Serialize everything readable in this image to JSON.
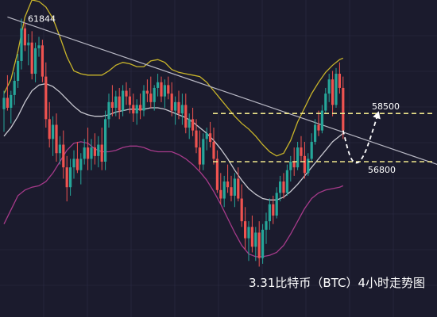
{
  "chart_data": {
    "type": "candlestick",
    "title": "3.31比特币（BTC）4小时走势图",
    "y_range": [
      53000,
      62500
    ],
    "colors": {
      "background": "#1b1b2d",
      "grid": "#2d2d45",
      "up": "#26a69a",
      "down": "#ef5350",
      "bb_upper": "#c9b52a",
      "bb_middle": "#c8c8d0",
      "bb_lower": "#a63a8a",
      "trendline": "#b8b8c4",
      "level": "#f0e68c",
      "projection": "#ffffff"
    },
    "annotations": {
      "peak_label": "61844",
      "resistance_label": "58500",
      "support_label": "56800"
    },
    "levels": [
      {
        "name": "resistance",
        "value": 58500
      },
      {
        "name": "support",
        "value": 56800
      }
    ],
    "trendline": [
      [
        2,
        61900
      ],
      [
        125,
        56700
      ]
    ],
    "candles": [
      [
        1,
        58650,
        59300,
        57850,
        59050
      ],
      [
        2,
        59050,
        59850,
        58600,
        58700
      ],
      [
        3,
        58700,
        59300,
        58150,
        59150
      ],
      [
        4,
        59150,
        59950,
        58800,
        59650
      ],
      [
        5,
        59650,
        60600,
        59400,
        60350
      ],
      [
        6,
        60350,
        61844,
        60050,
        61500
      ],
      [
        7,
        61500,
        61700,
        60700,
        60900
      ],
      [
        8,
        60900,
        61300,
        60200,
        61000
      ],
      [
        9,
        61000,
        61400,
        59700,
        59900
      ],
      [
        10,
        59900,
        61000,
        59600,
        60800
      ],
      [
        11,
        60800,
        61200,
        60500,
        60900
      ],
      [
        12,
        60900,
        61100,
        59600,
        59800
      ],
      [
        13,
        59800,
        60300,
        58000,
        58300
      ],
      [
        14,
        58300,
        58900,
        57300,
        57600
      ],
      [
        15,
        57600,
        58400,
        57000,
        58100
      ],
      [
        16,
        58100,
        58500,
        56800,
        57100
      ],
      [
        17,
        57100,
        57700,
        56700,
        57400
      ],
      [
        18,
        57400,
        57900,
        56200,
        56600
      ],
      [
        19,
        56600,
        57000,
        55400,
        55900
      ],
      [
        20,
        55900,
        56900,
        55600,
        56600
      ],
      [
        21,
        56600,
        57200,
        56200,
        56900
      ],
      [
        22,
        56900,
        57500,
        56400,
        56500
      ],
      [
        23,
        56500,
        57100,
        56000,
        56900
      ],
      [
        24,
        56900,
        57600,
        56700,
        57300
      ],
      [
        25,
        57300,
        58000,
        56500,
        56900
      ],
      [
        26,
        56900,
        57600,
        56500,
        57300
      ],
      [
        27,
        57300,
        57800,
        56700,
        57000
      ],
      [
        28,
        57000,
        57700,
        56600,
        57400
      ],
      [
        29,
        57400,
        58000,
        56500,
        56800
      ],
      [
        30,
        56800,
        58600,
        56500,
        58300
      ],
      [
        31,
        58300,
        59200,
        58000,
        58900
      ],
      [
        32,
        58900,
        59500,
        58400,
        58700
      ],
      [
        33,
        58700,
        59300,
        58400,
        59100
      ],
      [
        34,
        59100,
        59400,
        58300,
        58600
      ],
      [
        35,
        58600,
        59500,
        58400,
        59300
      ],
      [
        36,
        59300,
        59600,
        58800,
        59100
      ],
      [
        37,
        59100,
        59400,
        58500,
        58800
      ],
      [
        38,
        58800,
        59200,
        58200,
        58500
      ],
      [
        39,
        58500,
        59000,
        58100,
        58800
      ],
      [
        40,
        58800,
        59200,
        58300,
        58600
      ],
      [
        41,
        58600,
        59500,
        58400,
        59300
      ],
      [
        42,
        59300,
        59700,
        58900,
        59200
      ],
      [
        43,
        59200,
        59800,
        58700,
        58900
      ],
      [
        44,
        58900,
        59500,
        58600,
        59400
      ],
      [
        45,
        59400,
        59900,
        59100,
        59600
      ],
      [
        46,
        59600,
        59800,
        58900,
        59100
      ],
      [
        47,
        59100,
        59700,
        58700,
        59500
      ],
      [
        48,
        59500,
        59800,
        59000,
        59200
      ],
      [
        49,
        59200,
        59600,
        58400,
        58600
      ],
      [
        50,
        58600,
        59100,
        58100,
        58900
      ],
      [
        51,
        58900,
        59300,
        58300,
        58500
      ],
      [
        52,
        58500,
        59200,
        58100,
        58800
      ],
      [
        53,
        58800,
        59200,
        57800,
        58000
      ],
      [
        54,
        58000,
        58500,
        57600,
        58300
      ],
      [
        55,
        58300,
        58700,
        57700,
        57900
      ],
      [
        56,
        57900,
        58300,
        57100,
        57300
      ],
      [
        57,
        57300,
        57900,
        56500,
        56700
      ],
      [
        58,
        56700,
        57800,
        56500,
        57600
      ],
      [
        59,
        57600,
        58000,
        57200,
        57800
      ],
      [
        60,
        57800,
        58200,
        57300,
        57500
      ],
      [
        61,
        57500,
        58000,
        56700,
        56900
      ],
      [
        62,
        56900,
        57200,
        55700,
        55800
      ],
      [
        63,
        55800,
        56400,
        55300,
        55500
      ],
      [
        64,
        55500,
        56300,
        55200,
        56100
      ],
      [
        65,
        56100,
        56700,
        55700,
        55900
      ],
      [
        66,
        55900,
        56300,
        55400,
        55600
      ],
      [
        67,
        55600,
        56400,
        55200,
        56200
      ],
      [
        68,
        56200,
        56600,
        55400,
        55500
      ],
      [
        69,
        55500,
        56000,
        54500,
        54700
      ],
      [
        70,
        54700,
        55200,
        53700,
        54100
      ],
      [
        71,
        54100,
        54700,
        53300,
        54500
      ],
      [
        72,
        54500,
        54900,
        53600,
        53800
      ],
      [
        73,
        53800,
        54500,
        53300,
        54300
      ],
      [
        74,
        54300,
        54700,
        53100,
        53400
      ],
      [
        75,
        53400,
        54600,
        53200,
        54400
      ],
      [
        76,
        54400,
        55000,
        53900,
        54700
      ],
      [
        77,
        54700,
        55500,
        54400,
        55300
      ],
      [
        78,
        55300,
        55600,
        54600,
        54900
      ],
      [
        79,
        54900,
        55900,
        54800,
        55700
      ],
      [
        80,
        55700,
        56300,
        55400,
        56100
      ],
      [
        81,
        56100,
        56400,
        55500,
        55700
      ],
      [
        82,
        55700,
        56700,
        55600,
        56500
      ],
      [
        83,
        56500,
        57000,
        56100,
        56800
      ],
      [
        84,
        56800,
        57300,
        56300,
        56600
      ],
      [
        85,
        56600,
        57500,
        56500,
        57300
      ],
      [
        86,
        57300,
        57700,
        56800,
        57000
      ],
      [
        87,
        57000,
        57500,
        56200,
        56400
      ],
      [
        88,
        56400,
        57100,
        56300,
        56900
      ],
      [
        89,
        56900,
        57800,
        56800,
        57500
      ],
      [
        90,
        57500,
        58300,
        57400,
        58100
      ],
      [
        91,
        58100,
        58600,
        57700,
        57900
      ],
      [
        92,
        57900,
        58800,
        57800,
        58600
      ],
      [
        93,
        58600,
        59400,
        58500,
        59200
      ],
      [
        94,
        59200,
        59900,
        58900,
        59700
      ],
      [
        95,
        59700,
        60000,
        58400,
        58800
      ],
      [
        96,
        58800,
        60100,
        58700,
        59900
      ],
      [
        97,
        59900,
        60300,
        59200,
        59400
      ],
      [
        98,
        59400,
        59800,
        57600,
        57900
      ]
    ],
    "bb_upper": [
      [
        1,
        59200
      ],
      [
        3,
        59700
      ],
      [
        5,
        60700
      ],
      [
        7,
        61900
      ],
      [
        9,
        62500
      ],
      [
        11,
        62450
      ],
      [
        13,
        62250
      ],
      [
        15,
        61850
      ],
      [
        17,
        61200
      ],
      [
        19,
        60500
      ],
      [
        21,
        60000
      ],
      [
        23,
        59900
      ],
      [
        25,
        59850
      ],
      [
        27,
        59850
      ],
      [
        29,
        59850
      ],
      [
        31,
        60000
      ],
      [
        33,
        60200
      ],
      [
        35,
        60300
      ],
      [
        37,
        60250
      ],
      [
        39,
        60150
      ],
      [
        41,
        60150
      ],
      [
        43,
        60350
      ],
      [
        45,
        60400
      ],
      [
        47,
        60300
      ],
      [
        49,
        60050
      ],
      [
        51,
        59950
      ],
      [
        53,
        59900
      ],
      [
        55,
        59850
      ],
      [
        57,
        59800
      ],
      [
        59,
        59600
      ],
      [
        61,
        59300
      ],
      [
        63,
        59000
      ],
      [
        65,
        58700
      ],
      [
        67,
        58400
      ],
      [
        69,
        58150
      ],
      [
        71,
        57950
      ],
      [
        73,
        57700
      ],
      [
        75,
        57400
      ],
      [
        77,
        57150
      ],
      [
        79,
        57000
      ],
      [
        81,
        57100
      ],
      [
        83,
        57550
      ],
      [
        85,
        58200
      ],
      [
        87,
        58700
      ],
      [
        89,
        59200
      ],
      [
        91,
        59600
      ],
      [
        93,
        59950
      ],
      [
        95,
        60200
      ],
      [
        97,
        60400
      ],
      [
        98,
        60450
      ]
    ],
    "bb_middle": [
      [
        1,
        57700
      ],
      [
        3,
        58000
      ],
      [
        5,
        58400
      ],
      [
        7,
        58900
      ],
      [
        9,
        59300
      ],
      [
        11,
        59500
      ],
      [
        13,
        59550
      ],
      [
        15,
        59450
      ],
      [
        17,
        59250
      ],
      [
        19,
        59000
      ],
      [
        21,
        58750
      ],
      [
        23,
        58550
      ],
      [
        25,
        58450
      ],
      [
        27,
        58400
      ],
      [
        29,
        58400
      ],
      [
        31,
        58450
      ],
      [
        33,
        58550
      ],
      [
        35,
        58600
      ],
      [
        37,
        58650
      ],
      [
        39,
        58650
      ],
      [
        41,
        58650
      ],
      [
        43,
        58700
      ],
      [
        45,
        58700
      ],
      [
        47,
        58650
      ],
      [
        49,
        58550
      ],
      [
        51,
        58450
      ],
      [
        53,
        58350
      ],
      [
        55,
        58200
      ],
      [
        57,
        58000
      ],
      [
        59,
        57800
      ],
      [
        61,
        57550
      ],
      [
        63,
        57250
      ],
      [
        65,
        56900
      ],
      [
        67,
        56500
      ],
      [
        69,
        56150
      ],
      [
        71,
        55850
      ],
      [
        73,
        55650
      ],
      [
        75,
        55500
      ],
      [
        77,
        55450
      ],
      [
        79,
        55450
      ],
      [
        81,
        55550
      ],
      [
        83,
        55750
      ],
      [
        85,
        56000
      ],
      [
        87,
        56300
      ],
      [
        89,
        56600
      ],
      [
        91,
        56900
      ],
      [
        93,
        57200
      ],
      [
        95,
        57500
      ],
      [
        97,
        57700
      ],
      [
        98,
        57800
      ]
    ],
    "bb_lower": [
      [
        1,
        54600
      ],
      [
        3,
        55100
      ],
      [
        5,
        55600
      ],
      [
        7,
        55800
      ],
      [
        9,
        55900
      ],
      [
        11,
        55950
      ],
      [
        13,
        56100
      ],
      [
        15,
        56400
      ],
      [
        17,
        56800
      ],
      [
        19,
        57200
      ],
      [
        21,
        57450
      ],
      [
        23,
        57500
      ],
      [
        25,
        57450
      ],
      [
        27,
        57250
      ],
      [
        29,
        57150
      ],
      [
        31,
        57150
      ],
      [
        33,
        57200
      ],
      [
        35,
        57300
      ],
      [
        37,
        57350
      ],
      [
        39,
        57350
      ],
      [
        41,
        57300
      ],
      [
        43,
        57200
      ],
      [
        45,
        57150
      ],
      [
        47,
        57150
      ],
      [
        49,
        57150
      ],
      [
        51,
        57050
      ],
      [
        53,
        56900
      ],
      [
        55,
        56700
      ],
      [
        57,
        56450
      ],
      [
        59,
        56150
      ],
      [
        61,
        55750
      ],
      [
        63,
        55300
      ],
      [
        65,
        54800
      ],
      [
        67,
        54300
      ],
      [
        69,
        53850
      ],
      [
        71,
        53550
      ],
      [
        73,
        53450
      ],
      [
        75,
        53450
      ],
      [
        77,
        53500
      ],
      [
        79,
        53600
      ],
      [
        81,
        53850
      ],
      [
        83,
        54250
      ],
      [
        85,
        54700
      ],
      [
        87,
        55150
      ],
      [
        89,
        55500
      ],
      [
        91,
        55700
      ],
      [
        93,
        55800
      ],
      [
        95,
        55850
      ],
      [
        97,
        55900
      ],
      [
        98,
        55950
      ]
    ],
    "projection": [
      [
        98,
        57900
      ],
      [
        100,
        56900
      ],
      [
        102,
        56700
      ],
      [
        104,
        57000
      ],
      [
        106,
        57700
      ],
      [
        108,
        58500
      ]
    ]
  }
}
